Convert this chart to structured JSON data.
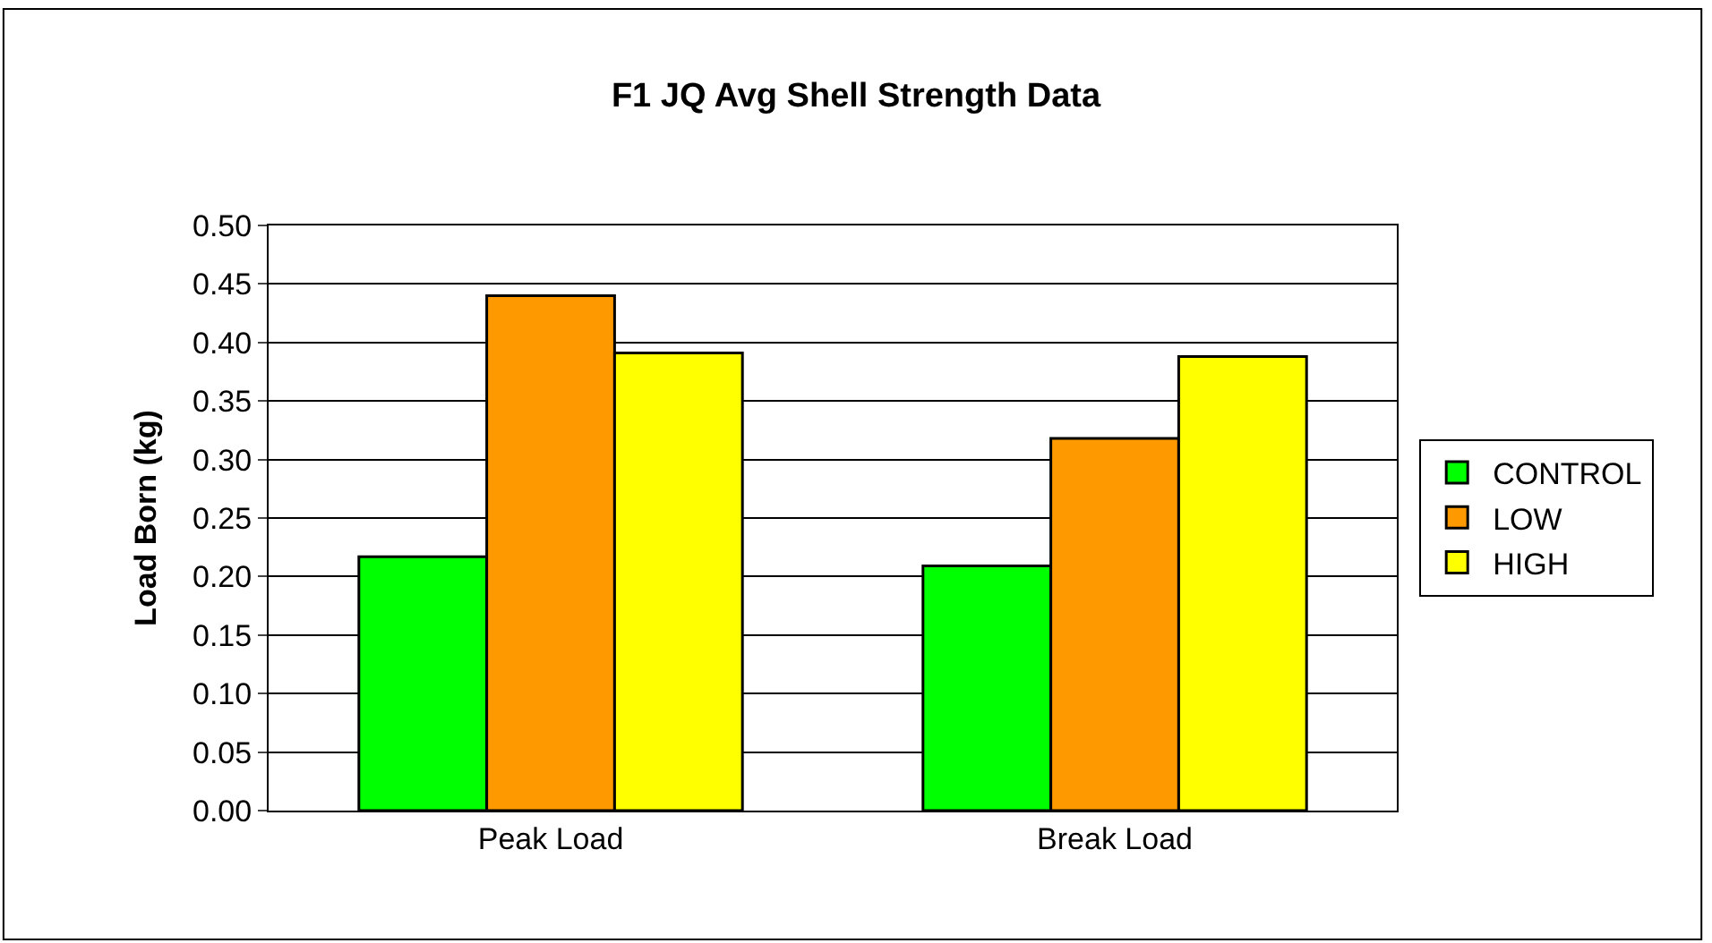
{
  "chart_data": {
    "type": "bar",
    "title": "F1 JQ Avg Shell Strength Data",
    "ylabel": "Load Born (kg)",
    "categories": [
      "Peak Load",
      "Break Load"
    ],
    "series": [
      {
        "name": "CONTROL",
        "color": "#00ff00",
        "values": [
          0.217,
          0.209
        ]
      },
      {
        "name": "LOW",
        "color": "#ff9900",
        "values": [
          0.44,
          0.318
        ]
      },
      {
        "name": "HIGH",
        "color": "#ffff00",
        "values": [
          0.391,
          0.388
        ]
      }
    ],
    "ylim": [
      0,
      0.5
    ],
    "yticks": [
      {
        "value": 0,
        "label": "0.00"
      },
      {
        "value": 0.05,
        "label": "0.05"
      },
      {
        "value": 0.1,
        "label": "0.10"
      },
      {
        "value": 0.15,
        "label": "0.15"
      },
      {
        "value": 0.2,
        "label": "0.20"
      },
      {
        "value": 0.25,
        "label": "0.25"
      },
      {
        "value": 0.3,
        "label": "0.30"
      },
      {
        "value": 0.35,
        "label": "0.35"
      },
      {
        "value": 0.4,
        "label": "0.40"
      },
      {
        "value": 0.45,
        "label": "0.45"
      },
      {
        "value": 0.5,
        "label": "0.50"
      }
    ],
    "grid": "y",
    "legend": "right"
  }
}
